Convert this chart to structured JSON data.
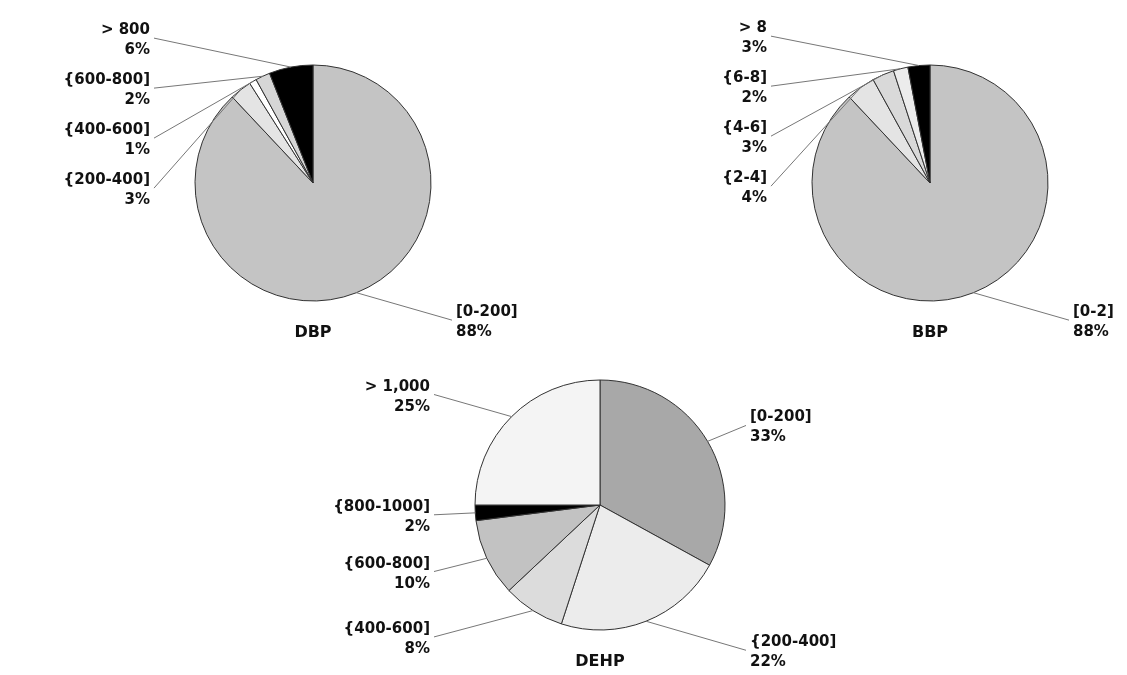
{
  "chart_data": [
    {
      "type": "pie",
      "title": "DBP",
      "categories": [
        "[0-200]",
        "{200-400]",
        "{400-600]",
        "{600-800]",
        "> 800"
      ],
      "values": [
        88,
        3,
        1,
        2,
        6
      ],
      "value_labels": [
        "88%",
        "3%",
        "1%",
        "2%",
        "6%"
      ],
      "colors": [
        "#c4c4c4",
        "#e4e4e4",
        "#ffffff",
        "#d6d6d6",
        "#000000"
      ],
      "legend": false
    },
    {
      "type": "pie",
      "title": "BBP",
      "categories": [
        "[0-2]",
        "{2-4]",
        "{4-6]",
        "{6-8]",
        "> 8"
      ],
      "values": [
        88,
        4,
        3,
        2,
        3
      ],
      "value_labels": [
        "88%",
        "4%",
        "3%",
        "2%",
        "3%"
      ],
      "colors": [
        "#c4c4c4",
        "#e4e4e4",
        "#d9d9d9",
        "#ececec",
        "#000000"
      ],
      "legend": false
    },
    {
      "type": "pie",
      "title": "DEHP",
      "categories": [
        "[0-200]",
        "{200-400]",
        "{400-600]",
        "{600-800]",
        "{800-1000]",
        "> 1,000"
      ],
      "values": [
        33,
        22,
        8,
        10,
        2,
        25
      ],
      "value_labels": [
        "33%",
        "22%",
        "8%",
        "10%",
        "2%",
        "25%"
      ],
      "colors": [
        "#a8a8a8",
        "#ececec",
        "#dcdcdc",
        "#c2c2c2",
        "#000000",
        "#f4f4f4"
      ],
      "legend": false
    }
  ]
}
